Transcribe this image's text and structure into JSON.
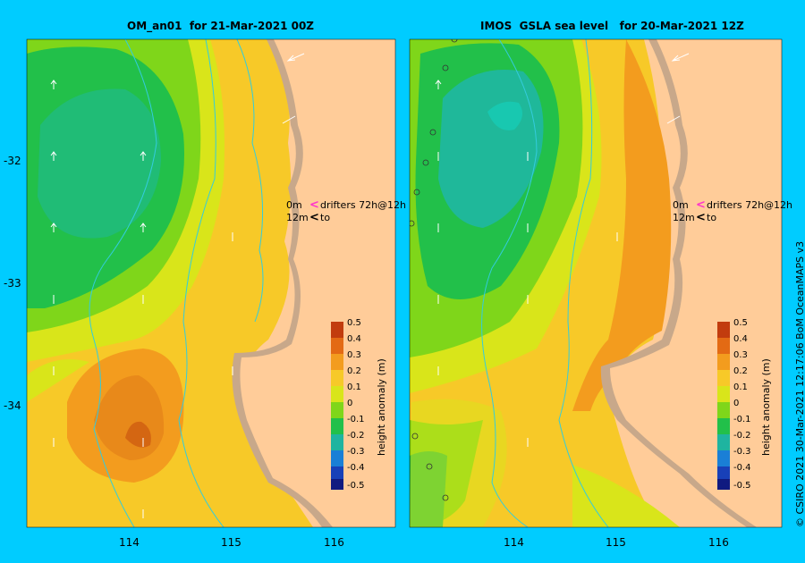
{
  "panels": [
    {
      "title": "OM_an01  for 21-Mar-2021 00Z"
    },
    {
      "title": "IMOS  GSLA sea level   for 20-Mar-2021 12Z"
    }
  ],
  "axes": {
    "lat_ticks": [
      "-32",
      "-33",
      "-34"
    ],
    "lon_ticks": [
      "114",
      "115",
      "116"
    ]
  },
  "legend": {
    "drifters_line1_label": "0m",
    "drifters_line1_text": "drifters 72h@12h",
    "drifters_line2_label": "12m",
    "drifters_line2_text": "to"
  },
  "colorbar": {
    "title": "height anomaly (m)",
    "ticks": [
      "0.5",
      "0.4",
      "0.3",
      "0.2",
      "0.1",
      "0",
      "-0.1",
      "-0.2",
      "-0.3",
      "-0.4",
      "-0.5"
    ],
    "colors": [
      "#c23c0e",
      "#e36a14",
      "#f39c1e",
      "#f7c928",
      "#d9e51a",
      "#7fd61a",
      "#22c04a",
      "#1fb4a0",
      "#1a7fd6",
      "#1840b8",
      "#101a80"
    ]
  },
  "credit": "© CSIRO 2021    30-Mar-2021 12:17:06 BoM OceanMAPS v3"
}
